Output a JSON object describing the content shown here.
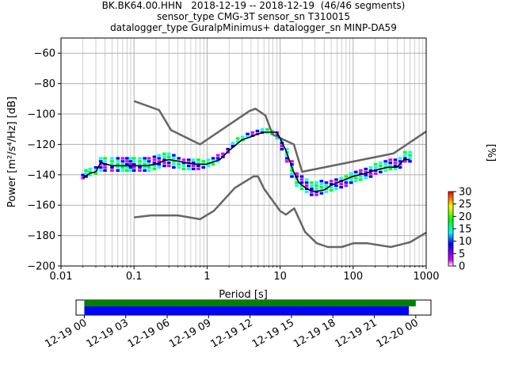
{
  "title_lines": [
    "BK.BK64.00.HHN   2018-12-19 -- 2018-12-19  (46/46 segments)",
    "sensor_type CMG-3T sensor_sn T310015",
    "datalogger_type GuralpMinimus+ datalogger_sn MINP-DA59"
  ],
  "colors": {
    "noise_model": "#666666",
    "mode_line": "#000000",
    "coverage_data": "#0000ff",
    "coverage_gaps_bar": "#008000",
    "grid": "#b0b0b0"
  },
  "chart_data": [
    {
      "type": "heatmap",
      "xlabel": "Period [s]",
      "ylabel": "Power [m²/s⁴/Hz] [dB]",
      "x_scale": "log",
      "xlim": [
        0.01,
        1000
      ],
      "ylim": [
        -200,
        -50
      ],
      "x_ticks": [
        0.01,
        0.1,
        1,
        10,
        100,
        1000
      ],
      "x_tick_labels": [
        "0.01",
        "0.1",
        "1",
        "10",
        "100",
        "1000"
      ],
      "y_ticks": [
        -200,
        -180,
        -160,
        -140,
        -120,
        -100,
        -80,
        -60
      ],
      "y_tick_labels": [
        "−200",
        "−180",
        "−160",
        "−140",
        "−120",
        "−100",
        "−80",
        "−60"
      ],
      "grid": true,
      "colorbar": {
        "label": "[%]",
        "range": [
          0,
          30
        ],
        "ticks": [
          0,
          5,
          10,
          15,
          20,
          25,
          30
        ],
        "tick_labels": [
          "0",
          "5",
          "10",
          "15",
          "20",
          "25",
          "30"
        ],
        "colormap": [
          "#ffffff",
          "#d600f0",
          "#0000ff",
          "#00ffff",
          "#00ff00",
          "#ffff00",
          "#ff0000"
        ]
      },
      "series": [
        {
          "name": "",
          "kind": "high_noise_model",
          "x": [
            0.1,
            0.22,
            0.32,
            0.8,
            3.8,
            4.6,
            6.3,
            7.9,
            15.4,
            20,
            354.8,
            1000
          ],
          "y": [
            -91.5,
            -97.4,
            -110.5,
            -120,
            -98,
            -96.5,
            -101,
            -113.5,
            -120,
            -138,
            -126,
            -111.5
          ]
        },
        {
          "name": "",
          "kind": "low_noise_model",
          "x": [
            0.1,
            0.17,
            0.4,
            0.8,
            1.24,
            2.4,
            4.3,
            5,
            6,
            10,
            12,
            15.6,
            21.9,
            31.6,
            45,
            70,
            101,
            154,
            328,
            600,
            1000
          ],
          "y": [
            -168,
            -166.7,
            -166.7,
            -169.2,
            -163.7,
            -148.6,
            -141.1,
            -141.1,
            -149,
            -163.8,
            -166.2,
            -162.1,
            -177.5,
            -185,
            -187.5,
            -187.5,
            -185,
            -185,
            -187.5,
            -184.4,
            -178
          ]
        },
        {
          "name": "",
          "kind": "mode",
          "x": [
            0.02,
            0.025,
            0.03,
            0.035,
            0.05,
            0.07,
            0.1,
            0.15,
            0.2,
            0.25,
            0.3,
            0.4,
            0.5,
            0.7,
            1,
            1.5,
            2,
            3,
            4,
            5,
            6,
            7,
            9,
            10,
            12,
            15,
            18,
            20,
            25,
            30,
            40,
            50,
            70,
            100,
            150,
            200,
            300,
            400,
            500,
            600
          ],
          "y": [
            -142,
            -139,
            -138,
            -132,
            -134,
            -134,
            -134,
            -134,
            -133,
            -131,
            -130,
            -131,
            -132,
            -133,
            -133,
            -130,
            -124,
            -117,
            -115,
            -113,
            -112,
            -112,
            -112,
            -116,
            -124,
            -137,
            -145,
            -147,
            -150,
            -151,
            -150,
            -147,
            -144,
            -141,
            -139,
            -137,
            -135,
            -135,
            -130,
            -130
          ]
        }
      ],
      "density_cells": [
        {
          "x": 0.02,
          "ys": [
            -143,
            -141
          ]
        },
        {
          "x": 0.022,
          "ys": [
            -142,
            -140,
            -138
          ]
        },
        {
          "x": 0.025,
          "ys": [
            -141,
            -139,
            -137
          ]
        },
        {
          "x": 0.03,
          "ys": [
            -140,
            -138,
            -136
          ]
        },
        {
          "x": 0.035,
          "ys": [
            -138,
            -136,
            -134,
            -132,
            -130
          ]
        },
        {
          "x": 0.04,
          "ys": [
            -138,
            -136,
            -134,
            -132,
            -130
          ]
        },
        {
          "x": 0.05,
          "ys": [
            -138,
            -136,
            -134,
            -132,
            -130
          ]
        },
        {
          "x": 0.06,
          "ys": [
            -138,
            -136,
            -134,
            -132,
            -130
          ]
        },
        {
          "x": 0.07,
          "ys": [
            -138,
            -136,
            -134,
            -132,
            -130
          ]
        },
        {
          "x": 0.08,
          "ys": [
            -138,
            -136,
            -134,
            -132,
            -130
          ]
        },
        {
          "x": 0.09,
          "ys": [
            -138,
            -136,
            -134,
            -132,
            -130
          ]
        },
        {
          "x": 0.1,
          "ys": [
            -138,
            -136,
            -134,
            -132,
            -130
          ]
        },
        {
          "x": 0.12,
          "ys": [
            -138,
            -136,
            -134,
            -132,
            -130
          ]
        },
        {
          "x": 0.14,
          "ys": [
            -138,
            -136,
            -134,
            -132,
            -130
          ]
        },
        {
          "x": 0.16,
          "ys": [
            -138,
            -136,
            -134,
            -132,
            -130
          ]
        },
        {
          "x": 0.19,
          "ys": [
            -137,
            -135,
            -133,
            -131,
            -129
          ]
        },
        {
          "x": 0.22,
          "ys": [
            -136,
            -134,
            -132,
            -130,
            -128
          ]
        },
        {
          "x": 0.26,
          "ys": [
            -135,
            -133,
            -131,
            -129,
            -127
          ]
        },
        {
          "x": 0.3,
          "ys": [
            -135,
            -133,
            -131,
            -129,
            -127
          ]
        },
        {
          "x": 0.35,
          "ys": [
            -136,
            -134,
            -132,
            -130,
            -128
          ]
        },
        {
          "x": 0.41,
          "ys": [
            -136,
            -134,
            -132,
            -130
          ]
        },
        {
          "x": 0.48,
          "ys": [
            -137,
            -135,
            -133,
            -131
          ]
        },
        {
          "x": 0.56,
          "ys": [
            -137,
            -135,
            -133,
            -131
          ]
        },
        {
          "x": 0.65,
          "ys": [
            -137,
            -135,
            -133,
            -131
          ]
        },
        {
          "x": 0.76,
          "ys": [
            -137,
            -135,
            -133,
            -131
          ]
        },
        {
          "x": 0.89,
          "ys": [
            -136,
            -134,
            -132
          ]
        },
        {
          "x": 1.04,
          "ys": [
            -135,
            -133,
            -131
          ]
        },
        {
          "x": 1.21,
          "ys": [
            -134,
            -132,
            -130
          ]
        },
        {
          "x": 1.41,
          "ys": [
            -132,
            -130,
            -128
          ]
        },
        {
          "x": 1.65,
          "ys": [
            -129,
            -127
          ]
        },
        {
          "x": 1.93,
          "ys": [
            -126,
            -124
          ]
        },
        {
          "x": 2.25,
          "ys": [
            -122,
            -120
          ]
        },
        {
          "x": 2.63,
          "ys": [
            -119,
            -117
          ]
        },
        {
          "x": 3.07,
          "ys": [
            -118,
            -116
          ]
        },
        {
          "x": 3.59,
          "ys": [
            -116,
            -114
          ]
        },
        {
          "x": 4.19,
          "ys": [
            -115,
            -113
          ]
        },
        {
          "x": 4.89,
          "ys": [
            -114,
            -112
          ]
        },
        {
          "x": 5.71,
          "ys": [
            -113,
            -111
          ]
        },
        {
          "x": 6.67,
          "ys": [
            -113,
            -111
          ]
        },
        {
          "x": 7.79,
          "ys": [
            -114,
            -112
          ]
        },
        {
          "x": 9.1,
          "ys": [
            -117,
            -115,
            -113
          ]
        },
        {
          "x": 10.6,
          "ys": [
            -124,
            -122,
            -120,
            -118
          ]
        },
        {
          "x": 12.4,
          "ys": [
            -132,
            -130,
            -128,
            -126,
            -124
          ]
        },
        {
          "x": 14.5,
          "ys": [
            -142,
            -140,
            -138,
            -136,
            -134,
            -132
          ]
        },
        {
          "x": 16.9,
          "ys": [
            -148,
            -146,
            -144,
            -142,
            -140
          ]
        },
        {
          "x": 19.8,
          "ys": [
            -150,
            -148,
            -146,
            -144,
            -142
          ]
        },
        {
          "x": 23.1,
          "ys": [
            -152,
            -150,
            -148,
            -146,
            -144
          ]
        },
        {
          "x": 27,
          "ys": [
            -154,
            -152,
            -150,
            -148,
            -146
          ]
        },
        {
          "x": 31.5,
          "ys": [
            -154,
            -152,
            -150,
            -148,
            -146
          ]
        },
        {
          "x": 36.8,
          "ys": [
            -153,
            -151,
            -149,
            -147,
            -145
          ]
        },
        {
          "x": 43,
          "ys": [
            -152,
            -150,
            -148,
            -146
          ]
        },
        {
          "x": 50.2,
          "ys": [
            -151,
            -149,
            -147,
            -145
          ]
        },
        {
          "x": 58.6,
          "ys": [
            -150,
            -148,
            -146,
            -144
          ]
        },
        {
          "x": 68.5,
          "ys": [
            -149,
            -147,
            -145,
            -143
          ]
        },
        {
          "x": 80,
          "ys": [
            -148,
            -146,
            -144,
            -142
          ]
        },
        {
          "x": 93.4,
          "ys": [
            -146,
            -144,
            -142,
            -140
          ]
        },
        {
          "x": 109,
          "ys": [
            -145,
            -143,
            -141,
            -139
          ]
        },
        {
          "x": 127,
          "ys": [
            -144,
            -142,
            -140,
            -138
          ]
        },
        {
          "x": 149,
          "ys": [
            -143,
            -141,
            -139,
            -137
          ]
        },
        {
          "x": 174,
          "ys": [
            -142,
            -140,
            -138,
            -136
          ]
        },
        {
          "x": 203,
          "ys": [
            -140,
            -138,
            -136,
            -134
          ]
        },
        {
          "x": 237,
          "ys": [
            -139,
            -137,
            -135,
            -133
          ]
        },
        {
          "x": 277,
          "ys": [
            -138,
            -136,
            -134,
            -132
          ]
        },
        {
          "x": 323,
          "ys": [
            -137,
            -135,
            -133,
            -131
          ]
        },
        {
          "x": 377,
          "ys": [
            -137,
            -135,
            -133,
            -131
          ]
        },
        {
          "x": 440,
          "ys": [
            -136,
            -134,
            -132,
            -130
          ]
        },
        {
          "x": 514,
          "ys": [
            -132,
            -130,
            -128,
            -126
          ]
        },
        {
          "x": 600,
          "ys": [
            -132,
            -130,
            -128,
            -126
          ]
        }
      ]
    },
    {
      "type": "bar",
      "name": "coverage",
      "x_tick_labels": [
        "12-19 00",
        "12-19 03",
        "12-19 06",
        "12-19 09",
        "12-19 12",
        "12-19 15",
        "12-19 18",
        "12-19 21",
        "12-20 00"
      ],
      "x_range_hours": [
        -0.6,
        25.1
      ],
      "bars": [
        {
          "kind": "gaps",
          "start_hour": 0,
          "end_hour": 24.0,
          "color": "#008000"
        },
        {
          "kind": "data",
          "start_hour": 0,
          "end_hour": 23.5,
          "color": "#0000ff"
        }
      ]
    }
  ]
}
